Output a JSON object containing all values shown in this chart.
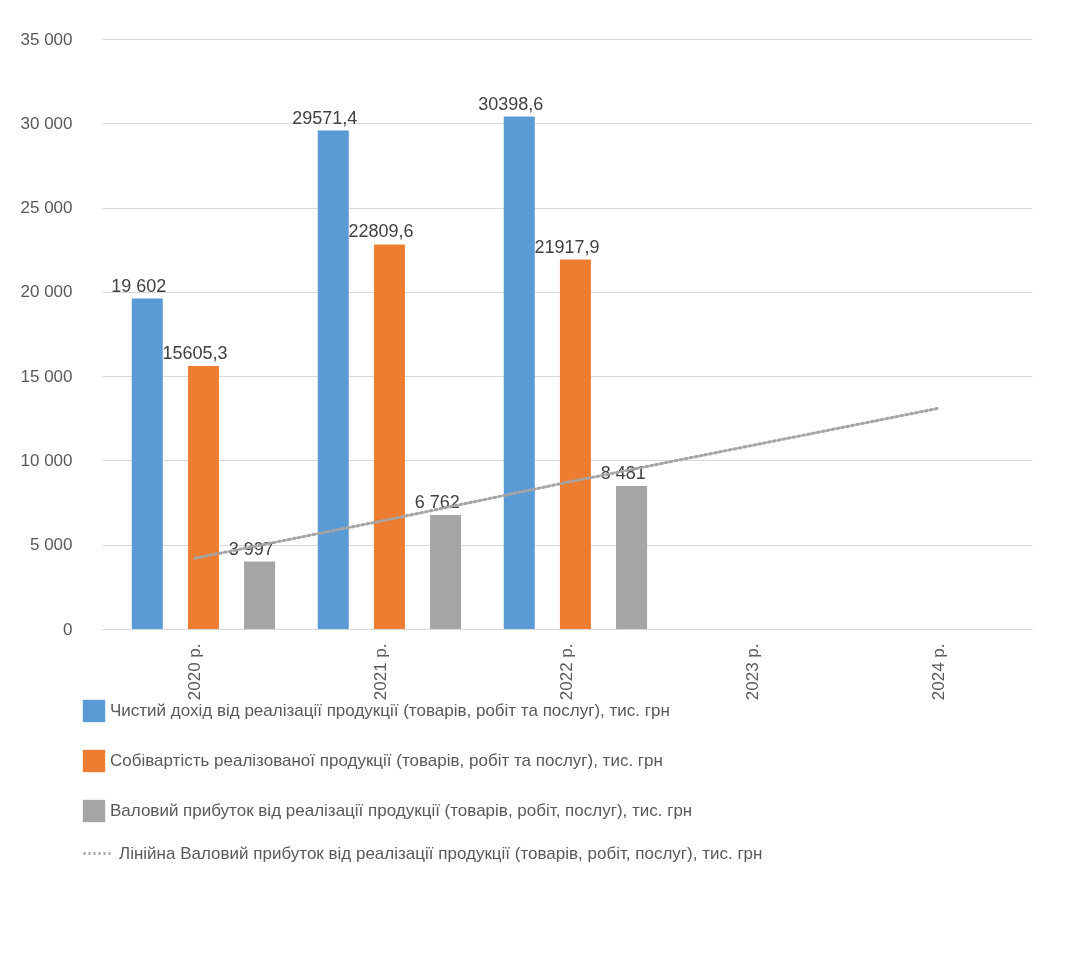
{
  "chart_data": {
    "type": "bar",
    "categories": [
      "2020 р.",
      "2021 р.",
      "2022 р.",
      "2023 р.",
      "2024 р."
    ],
    "series": [
      {
        "name": "Чистий дохід від реалізації продукції (товарів, робіт та послуг), тис. грн",
        "color": "#5b9bd5",
        "values": [
          19602,
          29571.4,
          30398.6,
          null,
          null
        ],
        "value_labels": [
          "19 602",
          "29571,4",
          "30398,6",
          null,
          null
        ]
      },
      {
        "name": "Собівартість реалізованої продукції (товарів, робіт та послуг), тис. грн",
        "color": "#ed7d31",
        "values": [
          15605.3,
          22809.6,
          21917.9,
          null,
          null
        ],
        "value_labels": [
          "15605,3",
          "22809,6",
          "21917,9",
          null,
          null
        ]
      },
      {
        "name": "Валовий прибуток від реалізації продукції (товарів, робіт, послуг), тис. грн",
        "color": "#a5a5a5",
        "values": [
          3997,
          6762,
          8481,
          null,
          null
        ],
        "value_labels": [
          "3 997",
          "6 762",
          "8 481",
          null,
          null
        ]
      },
      {
        "name": "Лінійна    Валовий прибуток від реалізації продукції (товарів, робіт, послуг), тис. грн",
        "type": "line",
        "line_style": "dotted",
        "color": "#a5a5a5",
        "values": [
          4200,
          6400,
          8700,
          10900,
          13100
        ]
      }
    ],
    "ylim": [
      0,
      35000
    ],
    "yticks": [
      {
        "value": 0,
        "label": "0"
      },
      {
        "value": 5000,
        "label": "5 000"
      },
      {
        "value": 10000,
        "label": "10 000"
      },
      {
        "value": 15000,
        "label": "15 000"
      },
      {
        "value": 20000,
        "label": "20 000"
      },
      {
        "value": 25000,
        "label": "25 000"
      },
      {
        "value": 30000,
        "label": "30 000"
      },
      {
        "value": 35000,
        "label": "35 000"
      }
    ],
    "grid": "y",
    "legend": "bottom"
  }
}
